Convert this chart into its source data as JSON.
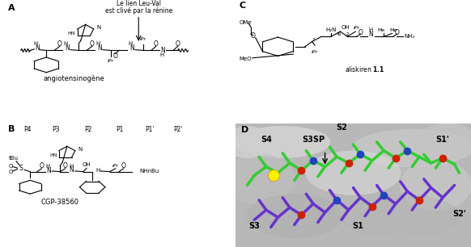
{
  "bg_color": "#ffffff",
  "label_A": "angiotensinogène",
  "label_B": "CGP-38560",
  "label_C": "aliskiren 1.1",
  "annotation_line1": "Le lien Leu-Val",
  "annotation_line2": "est clivé par la rénine",
  "p_labels": [
    "P4",
    "P3",
    "P2",
    "P1",
    "P1'",
    "P2'"
  ],
  "p_x": [
    1.0,
    2.2,
    3.6,
    5.0,
    6.3,
    7.5
  ],
  "figsize": [
    5.82,
    3.06
  ],
  "dpi": 100
}
